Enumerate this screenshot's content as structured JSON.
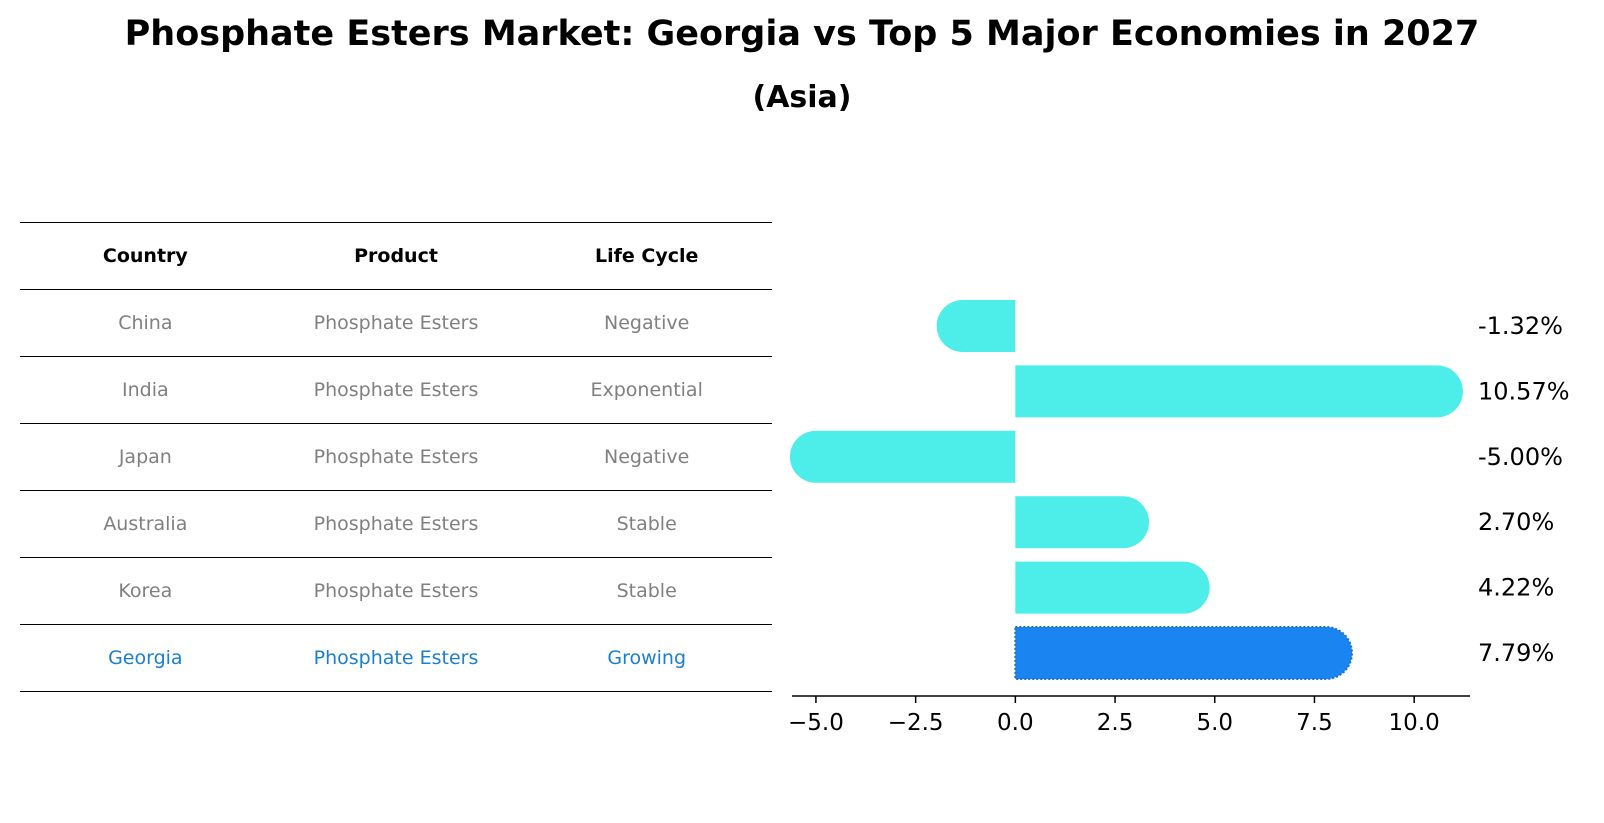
{
  "title": "Phosphate Esters Market: Georgia vs Top 5 Major Economies in 2027",
  "subtitle": "(Asia)",
  "table": {
    "headers": [
      "Country",
      "Product",
      "Life Cycle"
    ],
    "rows": [
      {
        "country": "China",
        "product": "Phosphate Esters",
        "life_cycle": "Negative"
      },
      {
        "country": "India",
        "product": "Phosphate Esters",
        "life_cycle": "Exponential"
      },
      {
        "country": "Japan",
        "product": "Phosphate Esters",
        "life_cycle": "Negative"
      },
      {
        "country": "Australia",
        "product": "Phosphate Esters",
        "life_cycle": "Stable"
      },
      {
        "country": "Korea",
        "product": "Phosphate Esters",
        "life_cycle": "Stable"
      },
      {
        "country": "Georgia",
        "product": "Phosphate Esters",
        "life_cycle": "Growing"
      }
    ]
  },
  "colors": {
    "bar": "#4deeea",
    "highlight_bar": "#1a85f0",
    "highlight_text": "#1a7fd1",
    "muted_text": "#808080"
  },
  "chart_data": {
    "type": "bar",
    "orientation": "horizontal",
    "categories": [
      "China",
      "India",
      "Japan",
      "Australia",
      "Korea",
      "Georgia"
    ],
    "values": [
      -1.32,
      10.57,
      -5.0,
      2.7,
      4.22,
      7.79
    ],
    "value_labels": [
      "-1.32%",
      "10.57%",
      "-5.00%",
      "2.70%",
      "4.22%",
      "7.79%"
    ],
    "highlight": "Georgia",
    "xlim": [
      -5.6,
      11.4
    ],
    "xticks": [
      -5.0,
      -2.5,
      0.0,
      2.5,
      5.0,
      7.5,
      10.0
    ],
    "xtick_labels": [
      "−5.0",
      "−2.5",
      "0.0",
      "2.5",
      "5.0",
      "7.5",
      "10.0"
    ],
    "grid": false
  }
}
